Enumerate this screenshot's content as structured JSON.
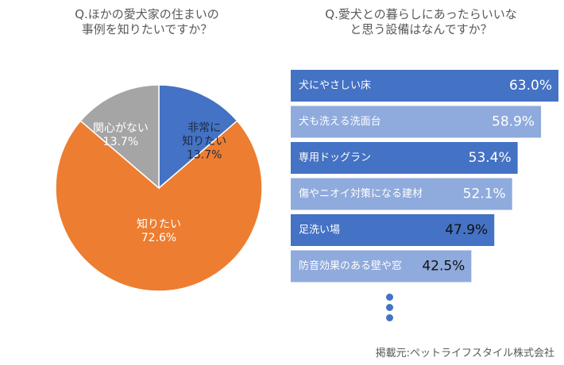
{
  "pie_title": "Q.ほかの愛犬家の住まいの\n事例を知りたいですか？",
  "bar_title": "Q.愛犬との暮らしにあったらいいな\nと思う設備はなんですか？",
  "source_text": "掲載元:ペットライフスタイル株式会社",
  "more_indicator": "…",
  "chart_data": [
    {
      "type": "pie",
      "title": "Q.ほかの愛犬家の住まいの事例を知りたいですか？",
      "slices": [
        {
          "label": "非常に\n知りたい",
          "value": 13.7,
          "value_label": "13.7%",
          "color": "#4472c4"
        },
        {
          "label": "知りたい",
          "value": 72.6,
          "value_label": "72.6%",
          "color": "#ed7d31"
        },
        {
          "label": "関心がない",
          "value": 13.7,
          "value_label": "13.7%",
          "color": "#a5a5a5"
        }
      ],
      "start": "12 o'clock",
      "direction": "clockwise"
    },
    {
      "type": "bar",
      "orientation": "horizontal",
      "title": "Q.愛犬との暮らしにあったらいいなと思う設備はなんですか？",
      "categories": [
        "犬にやさしい床",
        "犬も洗える洗面台",
        "専用ドッグラン",
        "傷やニオイ対策になる建材",
        "足洗い場",
        "防音効果のある壁や窓"
      ],
      "values": [
        63.0,
        58.9,
        53.4,
        52.1,
        47.9,
        42.5
      ],
      "value_labels": [
        "63.0%",
        "58.9%",
        "53.4%",
        "52.1%",
        "47.9%",
        "42.5%"
      ],
      "colors": [
        "#4472c4",
        "#8faadc",
        "#4472c4",
        "#8faadc",
        "#4472c4",
        "#8faadc"
      ],
      "xlim": [
        0,
        63.0
      ]
    }
  ]
}
